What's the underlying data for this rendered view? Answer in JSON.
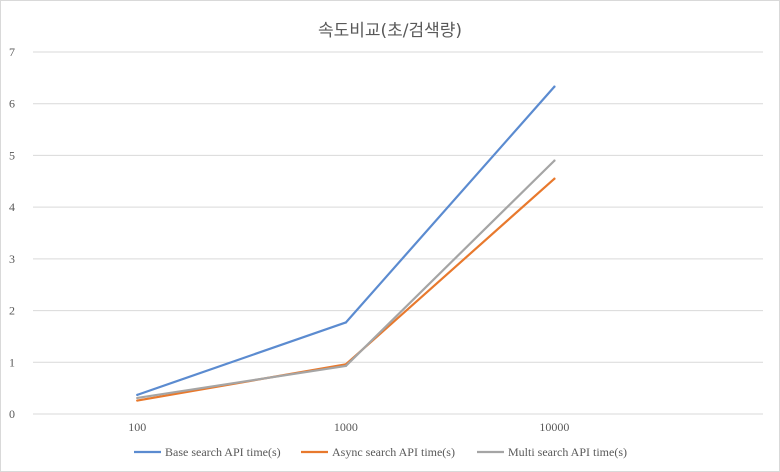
{
  "chart_data": {
    "type": "line",
    "title": "속도비교(초/검색량)",
    "categories": [
      "100",
      "1000",
      "10000"
    ],
    "series": [
      {
        "name": "Base search API time(s)",
        "values": [
          0.37,
          1.77,
          6.33
        ],
        "color": "#5b8bd0"
      },
      {
        "name": "Async search API time(s)",
        "values": [
          0.26,
          0.96,
          4.55
        ],
        "color": "#e8792d"
      },
      {
        "name": "Multi search API time(s)",
        "values": [
          0.31,
          0.93,
          4.9
        ],
        "color": "#a5a5a5"
      }
    ],
    "xlabel": "",
    "ylabel": "",
    "ylim": [
      0,
      7
    ],
    "yticks": [
      "0",
      "1",
      "2",
      "3",
      "4",
      "5",
      "6",
      "7"
    ],
    "grid": true,
    "legend": "bottom"
  }
}
